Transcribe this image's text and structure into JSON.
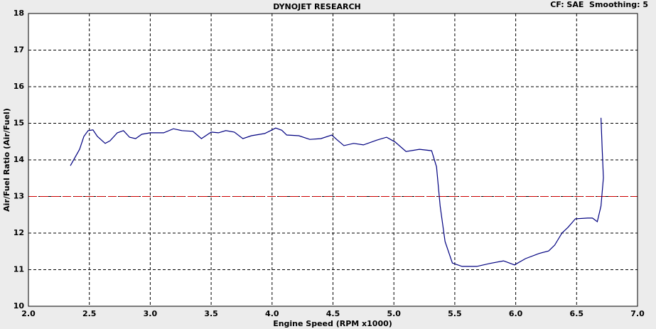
{
  "chart_data": {
    "type": "line",
    "title": "DYNOJET RESEARCH",
    "subtitle": "CF: SAE  Smoothing: 5",
    "x_label": "Engine Speed (RPM x1000)",
    "y_label": "Air/Fuel Ratio (Air/Fuel)",
    "xlim": [
      2,
      7
    ],
    "ylim": [
      10,
      18
    ],
    "xticks": [
      {
        "value": 2,
        "label": "2.0"
      },
      2.5,
      {
        "value": 3,
        "label": "3.0"
      },
      3.5,
      {
        "value": 4,
        "label": "4.0"
      },
      4.5,
      {
        "value": 5,
        "label": "5.0"
      },
      5.5,
      {
        "value": 6,
        "label": "6.0"
      },
      6.5,
      {
        "value": 7,
        "label": "7.0"
      }
    ],
    "yticks": [
      10,
      11,
      12,
      13,
      14,
      15,
      16,
      17,
      18
    ],
    "grid": true,
    "reference_line": {
      "value": 13,
      "color": "#cc0000"
    },
    "series": [
      {
        "color": "#000080",
        "x": [
          2.344,
          2.42,
          2.455,
          2.49,
          2.53,
          2.566,
          2.63,
          2.67,
          2.73,
          2.78,
          2.83,
          2.88,
          2.93,
          3.0,
          3.11,
          3.19,
          3.26,
          3.35,
          3.42,
          3.5,
          3.56,
          3.62,
          3.69,
          3.76,
          3.83,
          3.94,
          4.03,
          4.08,
          4.12,
          4.22,
          4.31,
          4.4,
          4.49,
          4.53,
          4.59,
          4.67,
          4.75,
          4.86,
          4.94,
          5.01,
          5.1,
          5.21,
          5.31,
          5.35,
          5.38,
          5.42,
          5.48,
          5.56,
          5.68,
          5.79,
          5.9,
          5.99,
          6.08,
          6.19,
          6.27,
          6.32,
          6.38,
          6.43,
          6.49,
          6.59,
          6.63,
          6.67,
          6.7,
          6.72,
          6.71,
          6.7
        ],
        "values": [
          13.84,
          14.29,
          14.64,
          14.8,
          14.82,
          14.64,
          14.45,
          14.52,
          14.74,
          14.8,
          14.62,
          14.58,
          14.7,
          14.74,
          14.74,
          14.85,
          14.8,
          14.78,
          14.58,
          14.76,
          14.74,
          14.8,
          14.76,
          14.58,
          14.66,
          14.72,
          14.87,
          14.81,
          14.68,
          14.66,
          14.56,
          14.58,
          14.68,
          14.56,
          14.39,
          14.45,
          14.41,
          14.54,
          14.62,
          14.49,
          14.23,
          14.29,
          14.25,
          13.81,
          12.74,
          11.77,
          11.18,
          11.09,
          11.09,
          11.17,
          11.24,
          11.13,
          11.3,
          11.44,
          11.51,
          11.67,
          12.0,
          12.16,
          12.39,
          12.41,
          12.41,
          12.31,
          12.74,
          13.51,
          14.29,
          15.15
        ]
      }
    ]
  }
}
